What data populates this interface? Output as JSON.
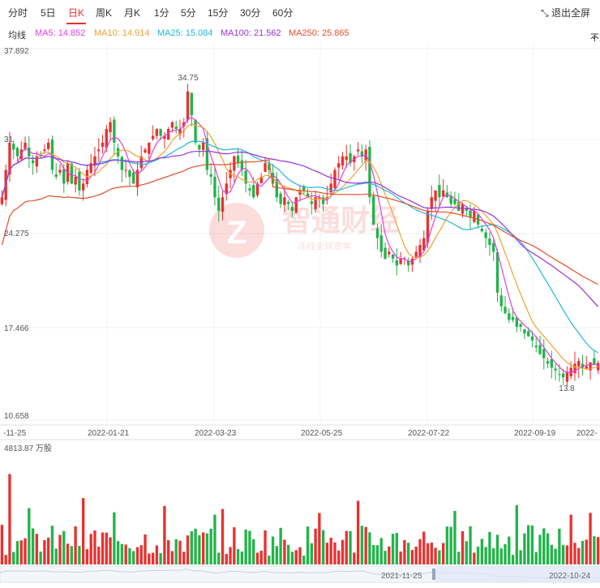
{
  "tabs": [
    "分时",
    "5日",
    "日K",
    "周K",
    "月K",
    "1分",
    "5分",
    "15分",
    "30分",
    "60分"
  ],
  "active_tab": "日K",
  "fullscreen_label": "退出全屏",
  "ma_label": "均线",
  "ma": [
    {
      "label": "MA5: 14.852",
      "color": "#e040e0"
    },
    {
      "label": "MA10: 14.914",
      "color": "#f0a030"
    },
    {
      "label": "MA25: 15.084",
      "color": "#20b8d8"
    },
    {
      "label": "MA100: 21.562",
      "color": "#9b30d8"
    },
    {
      "label": "MA250: 25.865",
      "color": "#e0502a"
    }
  ],
  "adjust_label": "不复权",
  "price_axis": [
    "37.892",
    "31",
    "24.275",
    "17.466",
    "10.658"
  ],
  "price_range": [
    10.658,
    37.892
  ],
  "date_axis": [
    "-11-25",
    "2022-01-21",
    "2022-03-23",
    "2022-05-25",
    "2022-07-22",
    "2022-09-19",
    "2022-"
  ],
  "annotations": {
    "high": "34.75",
    "low": "13.8"
  },
  "volume_label": "4813.87 万股",
  "navigator": {
    "start": "2021-11-25",
    "end": "2022-10-24"
  },
  "watermark": "智通财经",
  "colors": {
    "up": "#e8312f",
    "down": "#22b34a"
  },
  "chart_data": {
    "type": "candlestick",
    "price_ylim": [
      10.658,
      37.892
    ],
    "max_volume": "4813.87 万股",
    "close_series": [
      27,
      29,
      31,
      30.5,
      30,
      30.5,
      31,
      30,
      29.5,
      30,
      30,
      30.5,
      31,
      29,
      28.5,
      29,
      28,
      29.5,
      28,
      28.5,
      27.5,
      28,
      29,
      29.5,
      30,
      30.5,
      31,
      32,
      32.5,
      31,
      30,
      29,
      29,
      28.5,
      28,
      29,
      30,
      30.5,
      31,
      31.5,
      32,
      31.5,
      31.5,
      32,
      32.5,
      32,
      32,
      32.5,
      34.75,
      33,
      31,
      30.5,
      31,
      29,
      28.5,
      27,
      26,
      27,
      28,
      29,
      30,
      29.5,
      29,
      28,
      27.5,
      27,
      28,
      28.5,
      29.5,
      29,
      28,
      27,
      26.5,
      27,
      26.5,
      26,
      27,
      27.5,
      27.5,
      27,
      26.5,
      27,
      27,
      26.5,
      27,
      28,
      29,
      29.5,
      30,
      30,
      29.5,
      30,
      30.5,
      30,
      30.5,
      27,
      25,
      24,
      23,
      22.5,
      23,
      22.5,
      22,
      22.5,
      22.5,
      22,
      22.5,
      23,
      23.5,
      24,
      26,
      27,
      27.5,
      27,
      27.5,
      27,
      26.5,
      26.5,
      26,
      26.5,
      26,
      25.5,
      26,
      25,
      24.5,
      24,
      23.5,
      23,
      20,
      19,
      18.5,
      18,
      18,
      17.5,
      17.5,
      17,
      16.8,
      16.5,
      16,
      15.5,
      15.2,
      14.8,
      14.5,
      14.3,
      14,
      13.8,
      14.2,
      14.5,
      14.8,
      15,
      14.5,
      14.6,
      14.9,
      14.7,
      14.85
    ],
    "ma_series": [
      "MA5",
      "MA10",
      "MA25",
      "MA100",
      "MA250"
    ]
  }
}
